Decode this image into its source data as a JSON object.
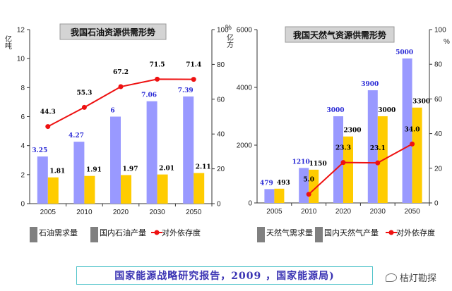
{
  "chart_data": [
    {
      "type": "bar",
      "title": "我国石油资源供需形势",
      "ylabel": "亿吨",
      "y2label": "%",
      "categories": [
        "2005",
        "2010",
        "2020",
        "2030",
        "2050"
      ],
      "ylim": [
        0,
        12
      ],
      "y2lim": [
        0,
        100
      ],
      "yticks": [
        "0",
        "2",
        "4",
        "6",
        "8",
        "10",
        "12"
      ],
      "y2ticks": [
        "0",
        "20",
        "40",
        "60",
        "80",
        "100"
      ],
      "series": [
        {
          "name": "石油需求量",
          "kind": "bar",
          "values": [
            3.25,
            4.27,
            6,
            7.06,
            7.39
          ],
          "labels": [
            "3.25",
            "4.27",
            "6",
            "7.06",
            "7.39"
          ],
          "color": "#9999ff",
          "label_color": "#2b2bd6"
        },
        {
          "name": "国内石油产量",
          "kind": "bar",
          "values": [
            1.81,
            1.91,
            1.97,
            2.01,
            2.11
          ],
          "labels": [
            "1.81",
            "1.91",
            "1.97",
            "2.01",
            "2.11"
          ],
          "color": "#ffcc00",
          "label_color": "#000000"
        },
        {
          "name": "对外依存度",
          "kind": "line",
          "axis": "right",
          "values": [
            44.3,
            55.3,
            67.2,
            71.5,
            71.4
          ],
          "labels": [
            "44.3",
            "55.3",
            "67.2",
            "71.5",
            "71.4"
          ],
          "color": "#ee1111",
          "label_color": "#000000"
        }
      ]
    },
    {
      "type": "bar",
      "title": "我国天然气资源供需形势",
      "ylabel": "亿方",
      "y2label": "%",
      "categories": [
        "2005",
        "2010",
        "2020",
        "2030",
        "2050"
      ],
      "ylim": [
        0,
        6000
      ],
      "y2lim": [
        0,
        100
      ],
      "yticks": [
        "0",
        "2000",
        "4000",
        "6000"
      ],
      "y2ticks": [
        "0",
        "20",
        "40",
        "60",
        "80",
        "100"
      ],
      "series": [
        {
          "name": "天然气需求量",
          "kind": "bar",
          "values": [
            479,
            1210,
            3000,
            3900,
            5000
          ],
          "labels": [
            "479",
            "1210",
            "3000",
            "3900",
            "5000"
          ],
          "color": "#9999ff",
          "label_color": "#2b2bd6"
        },
        {
          "name": "国内天然气产量",
          "kind": "bar",
          "values": [
            493,
            1150,
            2300,
            3000,
            3300
          ],
          "labels": [
            "493",
            "1150",
            "2300",
            "3000",
            "3300"
          ],
          "color": "#ffcc00",
          "label_color": "#000000"
        },
        {
          "name": "对外依存度",
          "kind": "line",
          "axis": "right",
          "values": [
            null,
            5.0,
            23.3,
            23.1,
            34.0
          ],
          "labels": [
            "",
            "5.0",
            "23.3",
            "23.1",
            "34.0"
          ],
          "color": "#ee1111",
          "label_color": "#000000"
        }
      ]
    }
  ],
  "footer": {
    "source": "国家能源战略研究报告，2009 ，国家能源局)"
  },
  "watermark": {
    "text": "桔灯勘探"
  }
}
